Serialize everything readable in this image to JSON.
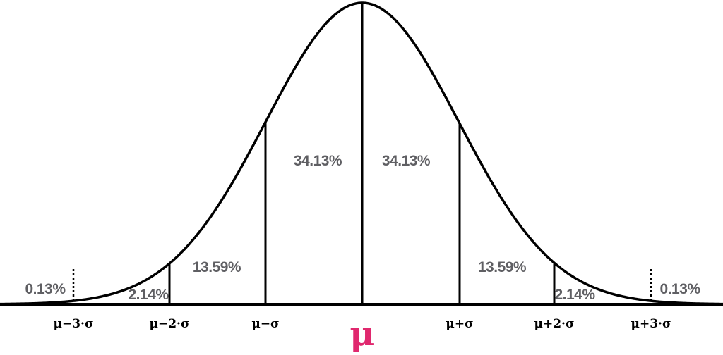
{
  "colors": {
    "curve": "#000000",
    "percent_text": "#5f5f63",
    "mu_accent": "#e0286e"
  },
  "regions": {
    "tail_left": "0.13%",
    "two_three_left": "2.14%",
    "one_two_left": "13.59%",
    "zero_one_left": "34.13%",
    "zero_one_right": "34.13%",
    "one_two_right": "13.59%",
    "two_three_right": "2.14%",
    "tail_right": "0.13%"
  },
  "axis_labels": {
    "minus3": "μ−3·σ",
    "minus2": "μ−2·σ",
    "minus1": "μ−σ",
    "mean": "μ",
    "plus1": "μ+σ",
    "plus2": "μ+2·σ",
    "plus3": "μ+3·σ"
  }
}
